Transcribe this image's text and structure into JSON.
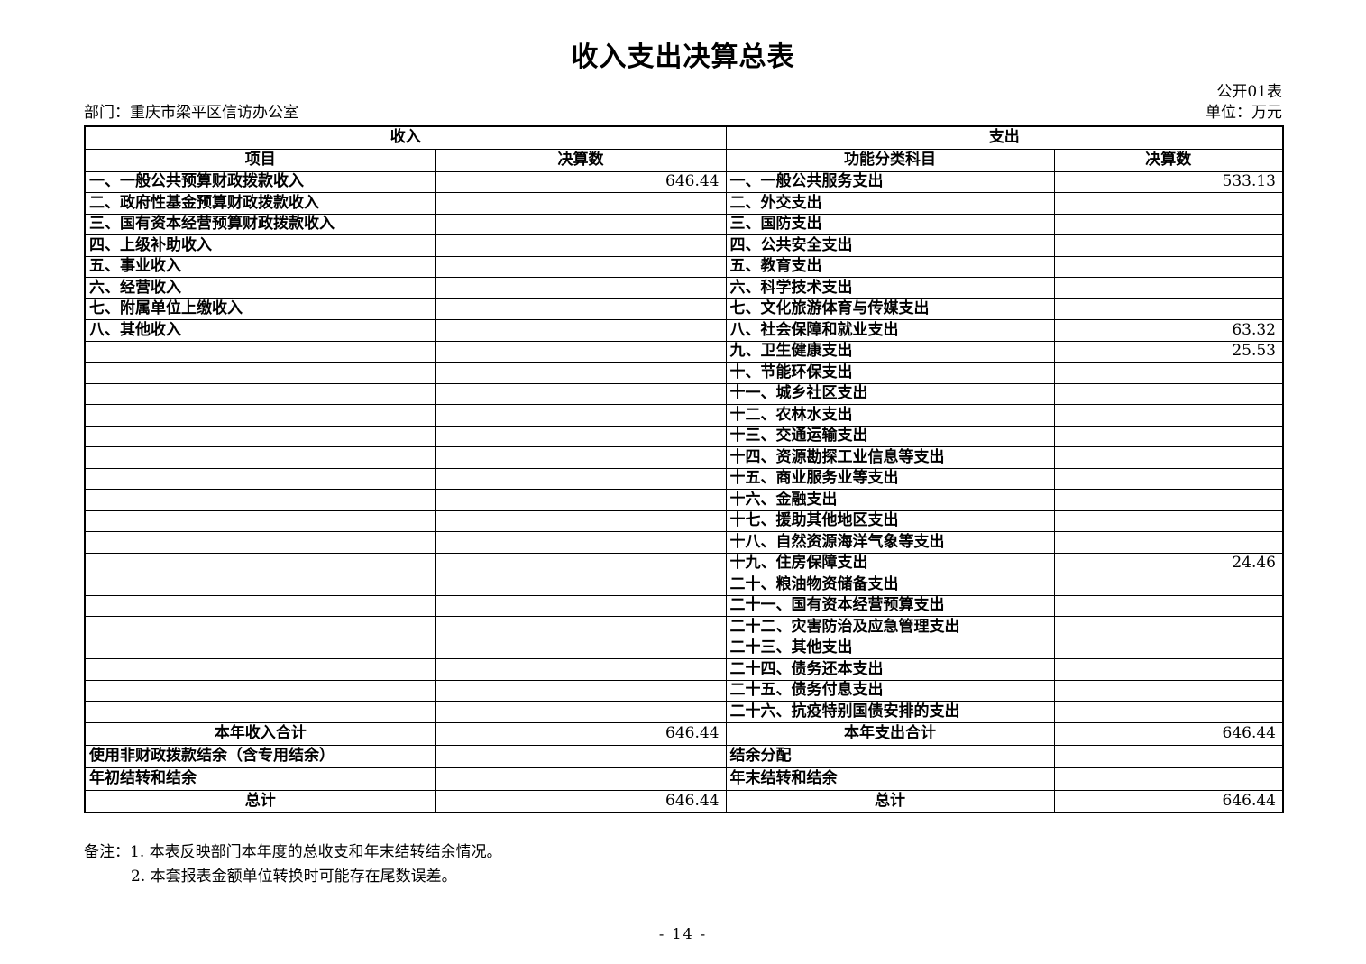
{
  "header": {
    "title": "收入支出决算总表",
    "form_label": "公开01表",
    "department": "部门：重庆市梁平区信访办公室",
    "unit": "单位：万元"
  },
  "table": {
    "income_section_title": "收入",
    "expense_section_title": "支出",
    "columns": {
      "income_item": "项目",
      "income_amount": "决算数",
      "expense_item": "功能分类科目",
      "expense_amount": "决算数"
    },
    "income_rows": [
      {
        "label": "一、一般公共预算财政拨款收入",
        "value": "646.44"
      },
      {
        "label": "二、政府性基金预算财政拨款收入",
        "value": ""
      },
      {
        "label": "三、国有资本经营预算财政拨款收入",
        "value": ""
      },
      {
        "label": "四、上级补助收入",
        "value": ""
      },
      {
        "label": "五、事业收入",
        "value": ""
      },
      {
        "label": "六、经营收入",
        "value": ""
      },
      {
        "label": "七、附属单位上缴收入",
        "value": ""
      },
      {
        "label": "八、其他收入",
        "value": ""
      },
      {
        "label": "",
        "value": ""
      },
      {
        "label": "",
        "value": ""
      },
      {
        "label": "",
        "value": ""
      },
      {
        "label": "",
        "value": ""
      },
      {
        "label": "",
        "value": ""
      },
      {
        "label": "",
        "value": ""
      },
      {
        "label": "",
        "value": ""
      },
      {
        "label": "",
        "value": ""
      },
      {
        "label": "",
        "value": ""
      },
      {
        "label": "",
        "value": ""
      },
      {
        "label": "",
        "value": ""
      },
      {
        "label": "",
        "value": ""
      },
      {
        "label": "",
        "value": ""
      },
      {
        "label": "",
        "value": ""
      },
      {
        "label": "",
        "value": ""
      },
      {
        "label": "",
        "value": ""
      },
      {
        "label": "",
        "value": ""
      },
      {
        "label": "",
        "value": ""
      }
    ],
    "expense_rows": [
      {
        "label": "一、一般公共服务支出",
        "value": "533.13"
      },
      {
        "label": "二、外交支出",
        "value": ""
      },
      {
        "label": "三、国防支出",
        "value": ""
      },
      {
        "label": "四、公共安全支出",
        "value": ""
      },
      {
        "label": "五、教育支出",
        "value": ""
      },
      {
        "label": "六、科学技术支出",
        "value": ""
      },
      {
        "label": "七、文化旅游体育与传媒支出",
        "value": ""
      },
      {
        "label": "八、社会保障和就业支出",
        "value": "63.32"
      },
      {
        "label": "九、卫生健康支出",
        "value": "25.53"
      },
      {
        "label": "十、节能环保支出",
        "value": ""
      },
      {
        "label": "十一、城乡社区支出",
        "value": ""
      },
      {
        "label": "十二、农林水支出",
        "value": ""
      },
      {
        "label": "十三、交通运输支出",
        "value": ""
      },
      {
        "label": "十四、资源勘探工业信息等支出",
        "value": ""
      },
      {
        "label": "十五、商业服务业等支出",
        "value": ""
      },
      {
        "label": "十六、金融支出",
        "value": ""
      },
      {
        "label": "十七、援助其他地区支出",
        "value": ""
      },
      {
        "label": "十八、自然资源海洋气象等支出",
        "value": ""
      },
      {
        "label": "十九、住房保障支出",
        "value": "24.46"
      },
      {
        "label": "二十、粮油物资储备支出",
        "value": ""
      },
      {
        "label": "二十一、国有资本经营预算支出",
        "value": ""
      },
      {
        "label": "二十二、灾害防治及应急管理支出",
        "value": ""
      },
      {
        "label": "二十三、其他支出",
        "value": ""
      },
      {
        "label": "二十四、债务还本支出",
        "value": ""
      },
      {
        "label": "二十五、债务付息支出",
        "value": ""
      },
      {
        "label": "二十六、抗疫特别国债安排的支出",
        "value": ""
      }
    ],
    "income_footer": [
      {
        "label": "本年收入合计",
        "value": "646.44",
        "align": "center"
      },
      {
        "label": "使用非财政拨款结余（含专用结余）",
        "value": "",
        "align": "left"
      },
      {
        "label": "年初结转和结余",
        "value": "",
        "align": "left"
      },
      {
        "label": "总计",
        "value": "646.44",
        "align": "center"
      }
    ],
    "expense_footer": [
      {
        "label": "本年支出合计",
        "value": "646.44",
        "align": "center"
      },
      {
        "label": "结余分配",
        "value": "",
        "align": "left"
      },
      {
        "label": "年末结转和结余",
        "value": "",
        "align": "left"
      },
      {
        "label": "总计",
        "value": "646.44",
        "align": "center"
      }
    ]
  },
  "notes": {
    "label": "备注：",
    "lines": [
      "1. 本表反映部门本年度的总收支和年末结转结余情况。",
      "2. 本套报表金额单位转换时可能存在尾数误差。"
    ]
  },
  "footer": {
    "page_number": "- 14 -"
  }
}
